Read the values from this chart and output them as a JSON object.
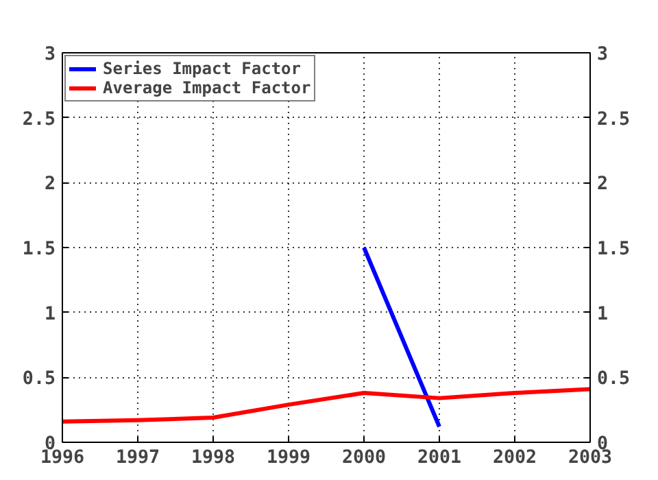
{
  "chart_data": {
    "type": "line",
    "x": [
      1996,
      1997,
      1998,
      1999,
      2000,
      2001,
      2002,
      2003
    ],
    "series": [
      {
        "name": "Series Impact Factor",
        "color": "#0000ff",
        "values": [
          null,
          null,
          null,
          null,
          1.5,
          0.12,
          null,
          null
        ]
      },
      {
        "name": "Average Impact Factor",
        "color": "#ff0000",
        "values": [
          0.16,
          0.17,
          0.19,
          0.29,
          0.38,
          0.34,
          0.38,
          0.41
        ]
      }
    ],
    "xlim": [
      1996,
      2003
    ],
    "xticks": [
      1996,
      1997,
      1998,
      1999,
      2000,
      2001,
      2002,
      2003
    ],
    "ylim": [
      0,
      3
    ],
    "yticks": [
      0,
      {
        "value": 0.5,
        "label": "0.5"
      },
      1,
      {
        "value": 1.5,
        "label": "1.5"
      },
      2,
      {
        "value": 2.5,
        "label": "2.5"
      },
      3
    ],
    "y2lim": [
      0,
      3
    ],
    "y2ticks": [
      0,
      {
        "value": 0.5,
        "label": "0.5"
      },
      1,
      {
        "value": 1.5,
        "label": "1.5"
      },
      2,
      {
        "value": 2.5,
        "label": "2.5"
      },
      3
    ],
    "grid": true,
    "legend": "top left",
    "line_style": "solid",
    "marker": "none"
  }
}
